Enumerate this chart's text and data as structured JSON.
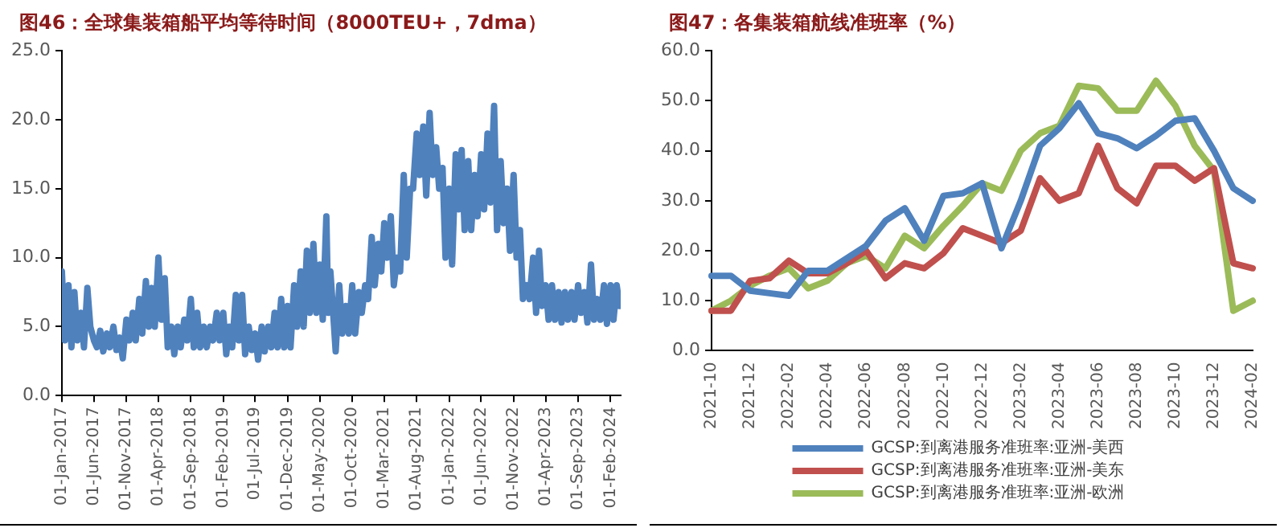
{
  "chart_data": [
    {
      "type": "line",
      "title": "图46：全球集装箱船平均等待时间（8000TEU+，7dma）",
      "grid": false,
      "legend": false,
      "marker": "none",
      "xlim": [
        "2017-01-01",
        "2024-03-20"
      ],
      "xticks": [
        {
          "value": "2017-01-01",
          "label": "01-Jan-2017"
        },
        {
          "value": "2017-06-01",
          "label": "01-Jun-2017"
        },
        {
          "value": "2017-11-01",
          "label": "01-Nov-2017"
        },
        {
          "value": "2018-04-01",
          "label": "01-Apr-2018"
        },
        {
          "value": "2018-09-01",
          "label": "01-Sep-2018"
        },
        {
          "value": "2019-02-01",
          "label": "01-Feb-2019"
        },
        {
          "value": "2019-07-01",
          "label": "01-Jul-2019"
        },
        {
          "value": "2019-12-01",
          "label": "01-Dec-2019"
        },
        {
          "value": "2020-05-01",
          "label": "01-May-2020"
        },
        {
          "value": "2020-10-01",
          "label": "01-Oct-2020"
        },
        {
          "value": "2021-03-01",
          "label": "01-Mar-2021"
        },
        {
          "value": "2021-08-01",
          "label": "01-Aug-2021"
        },
        {
          "value": "2022-01-01",
          "label": "01-Jan-2022"
        },
        {
          "value": "2022-06-01",
          "label": "01-Jun-2022"
        },
        {
          "value": "2022-11-01",
          "label": "01-Nov-2022"
        },
        {
          "value": "2023-04-01",
          "label": "01-Apr-2023"
        },
        {
          "value": "2023-09-01",
          "label": "01-Sep-2023"
        },
        {
          "value": "2024-02-01",
          "label": "01-Feb-2024"
        }
      ],
      "ylim": [
        0,
        25
      ],
      "yticks": [
        {
          "value": 0,
          "label": "0.0"
        },
        {
          "value": 5,
          "label": "5.0"
        },
        {
          "value": 10,
          "label": "10.0"
        },
        {
          "value": 15,
          "label": "15.0"
        },
        {
          "value": 20,
          "label": "20.0"
        },
        {
          "value": 25,
          "label": "25.0"
        }
      ],
      "series": [
        {
          "color": "#4f81bd",
          "x": [
            "2017-01-01",
            "2017-01-15",
            "2017-02-01",
            "2017-02-15",
            "2017-03-01",
            "2017-03-15",
            "2017-04-01",
            "2017-04-15",
            "2017-05-01",
            "2017-05-15",
            "2017-06-01",
            "2017-06-15",
            "2017-07-01",
            "2017-07-15",
            "2017-08-01",
            "2017-08-15",
            "2017-09-01",
            "2017-09-15",
            "2017-10-01",
            "2017-10-15",
            "2017-11-01",
            "2017-11-15",
            "2017-12-01",
            "2017-12-15",
            "2018-01-01",
            "2018-01-15",
            "2018-02-01",
            "2018-02-15",
            "2018-03-01",
            "2018-03-15",
            "2018-04-01",
            "2018-04-15",
            "2018-05-01",
            "2018-05-15",
            "2018-06-01",
            "2018-06-15",
            "2018-07-01",
            "2018-07-15",
            "2018-08-01",
            "2018-08-15",
            "2018-09-01",
            "2018-09-15",
            "2018-10-01",
            "2018-10-15",
            "2018-11-01",
            "2018-11-15",
            "2018-12-01",
            "2018-12-15",
            "2019-01-01",
            "2019-01-15",
            "2019-02-01",
            "2019-02-15",
            "2019-03-01",
            "2019-03-15",
            "2019-04-01",
            "2019-04-15",
            "2019-05-01",
            "2019-05-15",
            "2019-06-01",
            "2019-06-15",
            "2019-07-01",
            "2019-07-15",
            "2019-08-01",
            "2019-08-15",
            "2019-09-01",
            "2019-09-15",
            "2019-10-01",
            "2019-10-15",
            "2019-11-01",
            "2019-11-15",
            "2019-12-01",
            "2019-12-15",
            "2020-01-01",
            "2020-01-15",
            "2020-02-01",
            "2020-02-15",
            "2020-03-01",
            "2020-03-15",
            "2020-04-01",
            "2020-04-15",
            "2020-05-01",
            "2020-05-15",
            "2020-06-01",
            "2020-06-10",
            "2020-06-20",
            "2020-07-01",
            "2020-07-15",
            "2020-08-01",
            "2020-08-15",
            "2020-09-01",
            "2020-09-15",
            "2020-10-01",
            "2020-10-15",
            "2020-11-01",
            "2020-11-15",
            "2020-12-01",
            "2020-12-15",
            "2021-01-01",
            "2021-01-15",
            "2021-02-01",
            "2021-02-15",
            "2021-03-01",
            "2021-03-15",
            "2021-04-01",
            "2021-04-15",
            "2021-05-01",
            "2021-05-15",
            "2021-06-01",
            "2021-06-15",
            "2021-07-01",
            "2021-07-15",
            "2021-08-01",
            "2021-08-15",
            "2021-09-01",
            "2021-09-15",
            "2021-10-01",
            "2021-10-15",
            "2021-11-01",
            "2021-11-15",
            "2021-12-01",
            "2021-12-15",
            "2022-01-01",
            "2022-01-15",
            "2022-02-01",
            "2022-02-15",
            "2022-03-01",
            "2022-03-15",
            "2022-04-01",
            "2022-04-15",
            "2022-05-01",
            "2022-05-15",
            "2022-06-01",
            "2022-06-15",
            "2022-07-01",
            "2022-07-15",
            "2022-08-01",
            "2022-08-15",
            "2022-09-01",
            "2022-09-15",
            "2022-10-01",
            "2022-10-15",
            "2022-11-01",
            "2022-11-15",
            "2022-12-01",
            "2022-12-15",
            "2023-01-01",
            "2023-01-15",
            "2023-02-01",
            "2023-02-15",
            "2023-03-01",
            "2023-03-15",
            "2023-04-01",
            "2023-04-15",
            "2023-05-01",
            "2023-05-15",
            "2023-06-01",
            "2023-06-15",
            "2023-07-01",
            "2023-07-15",
            "2023-08-01",
            "2023-08-15",
            "2023-09-01",
            "2023-09-15",
            "2023-10-01",
            "2023-10-15",
            "2023-11-01",
            "2023-11-15",
            "2023-12-01",
            "2023-12-15",
            "2024-01-01",
            "2024-01-15",
            "2024-02-01",
            "2024-02-15",
            "2024-03-01",
            "2024-03-15"
          ],
          "values": [
            9,
            4,
            8,
            3.5,
            7.5,
            4,
            6,
            3.5,
            7.8,
            5,
            4,
            3.5,
            4.7,
            3.2,
            4.5,
            3.5,
            5,
            3.3,
            4.2,
            2.7,
            5.5,
            4,
            6,
            4,
            7,
            4.5,
            8.3,
            5,
            7.8,
            5,
            10,
            5.5,
            8.5,
            3.5,
            5,
            3,
            5,
            3.5,
            5.5,
            4,
            7,
            3.5,
            6,
            3.5,
            5,
            3.5,
            5,
            4,
            6,
            4,
            6,
            3,
            5,
            3.5,
            7.3,
            4,
            7.3,
            3,
            5,
            3.3,
            4.5,
            2.6,
            5,
            3.2,
            5,
            3.5,
            6,
            3.5,
            7,
            3.5,
            6.5,
            3.5,
            8,
            5,
            9,
            5,
            10.5,
            6,
            11,
            6,
            9.5,
            5.5,
            13,
            6,
            9,
            6.5,
            3.2,
            8,
            4.5,
            6.5,
            4.5,
            8,
            4.5,
            7.5,
            6,
            8,
            7,
            11.5,
            8,
            11,
            9,
            12.5,
            10,
            13,
            8,
            10,
            9,
            16,
            10,
            15,
            15,
            19,
            16,
            19.5,
            14.5,
            20.5,
            16,
            18,
            15,
            16.5,
            10,
            15,
            9.5,
            17.5,
            13.5,
            17.8,
            12,
            17,
            12,
            16,
            13,
            17.5,
            13.5,
            19,
            14,
            21,
            12,
            17,
            12.5,
            15,
            10.5,
            16,
            10,
            12,
            7,
            8,
            7,
            10,
            6,
            10.5,
            6.5,
            8,
            5.5,
            8,
            5.5,
            7.5,
            5.3,
            7.5,
            5.5,
            7.5,
            5.5,
            8,
            6,
            7.5,
            5.3,
            9.5,
            5.5,
            7,
            5.5,
            8,
            5.2,
            8,
            5.5,
            8,
            6.5
          ]
        }
      ]
    },
    {
      "type": "line",
      "title": "图47：各集装箱航线准班率（%）",
      "grid": false,
      "legend": "bottom",
      "marker": "none",
      "categories": [
        "2021-10",
        null,
        "2021-12",
        null,
        "2022-02",
        null,
        "2022-04",
        null,
        "2022-06",
        null,
        "2022-08",
        null,
        "2022-10",
        null,
        "2022-12",
        null,
        "2023-02",
        null,
        "2023-04",
        null,
        "2023-06",
        null,
        "2023-08",
        null,
        "2023-10",
        null,
        "2023-12",
        null,
        "2024-02"
      ],
      "ylim": [
        0,
        60
      ],
      "yticks": [
        {
          "value": 0,
          "label": "0.0"
        },
        {
          "value": 10,
          "label": "10.0"
        },
        {
          "value": 20,
          "label": "20.0"
        },
        {
          "value": 30,
          "label": "30.0"
        },
        {
          "value": 40,
          "label": "40.0"
        },
        {
          "value": 50,
          "label": "50.0"
        },
        {
          "value": 60,
          "label": "60.0"
        }
      ],
      "series": [
        {
          "name": "GCSP:到离港服务准班率:亚洲-美西",
          "color": "#4f81bd",
          "values": [
            15,
            15,
            12,
            11.5,
            11,
            16,
            16,
            18.5,
            21,
            26,
            28.5,
            22,
            31,
            31.5,
            33.5,
            20.5,
            30,
            41,
            44.5,
            49.5,
            43.5,
            42.5,
            40.5,
            43,
            46,
            46.5,
            40,
            32.5,
            30
          ]
        },
        {
          "name": "GCSP:到离港服务准班率:亚洲-美东",
          "color": "#c0504d",
          "values": [
            8,
            8,
            14,
            14.5,
            18,
            15.5,
            15.5,
            17.5,
            20,
            14.5,
            17.5,
            16.5,
            19.5,
            24.5,
            23,
            21.5,
            24,
            34.5,
            30,
            31.5,
            41,
            32.5,
            29.5,
            37,
            37,
            34,
            36.5,
            17.5,
            16.5
          ]
        },
        {
          "name": "GCSP:到离港服务准班率:亚洲-欧洲",
          "color": "#9bbb59",
          "values": [
            8,
            10,
            13,
            15,
            16.5,
            12.5,
            14,
            17.5,
            19,
            16.5,
            23,
            20.5,
            25,
            29,
            33.5,
            32,
            40,
            43.5,
            45,
            53,
            52.5,
            48,
            48,
            54,
            49,
            41,
            36,
            8,
            10
          ]
        }
      ]
    }
  ]
}
